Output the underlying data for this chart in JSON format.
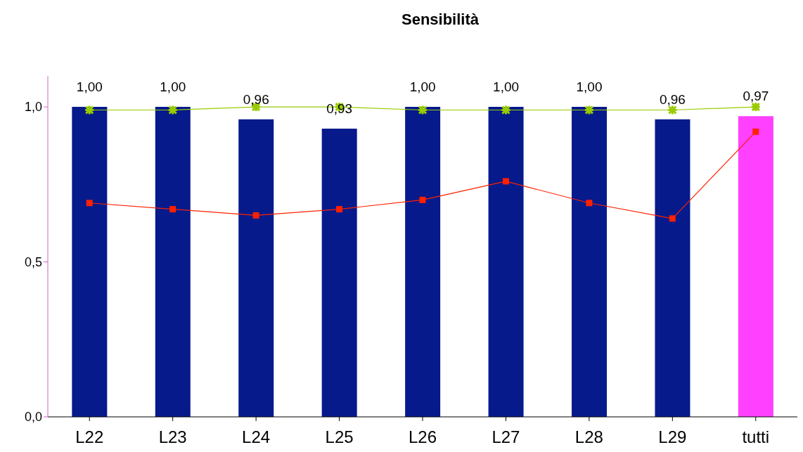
{
  "chart_data": {
    "type": "bar",
    "title": "Sensibilità",
    "categories": [
      "L22",
      "L23",
      "L24",
      "L25",
      "L26",
      "L27",
      "L28",
      "L29",
      "tutti"
    ],
    "series": [
      {
        "values": [
          1.0,
          1.0,
          0.96,
          0.93,
          1.0,
          1.0,
          1.0,
          0.96,
          0.97
        ],
        "colors": [
          "#061a8c",
          "#061a8c",
          "#061a8c",
          "#061a8c",
          "#061a8c",
          "#061a8c",
          "#061a8c",
          "#061a8c",
          "#ff40ff"
        ],
        "value_labels": [
          "1,00",
          "1,00",
          "0,96",
          "0,93",
          "1,00",
          "1,00",
          "1,00",
          "0,96",
          "0,97"
        ]
      },
      {
        "type": "line",
        "color": "#99cc00",
        "marker": "cross",
        "values": [
          0.99,
          0.99,
          1.0,
          1.0,
          0.99,
          0.99,
          0.99,
          0.99,
          1.0
        ]
      },
      {
        "type": "line",
        "color": "#ff2000",
        "marker": "square",
        "values": [
          0.69,
          0.67,
          0.65,
          0.67,
          0.7,
          0.76,
          0.69,
          0.64,
          0.92
        ]
      }
    ],
    "ylim": [
      0,
      1.1
    ],
    "yticks": [
      {
        "value": 0,
        "label": "0,0"
      },
      {
        "value": 0.5,
        "label": "0,5"
      },
      {
        "value": 1,
        "label": "1,0"
      }
    ],
    "grid": false
  }
}
